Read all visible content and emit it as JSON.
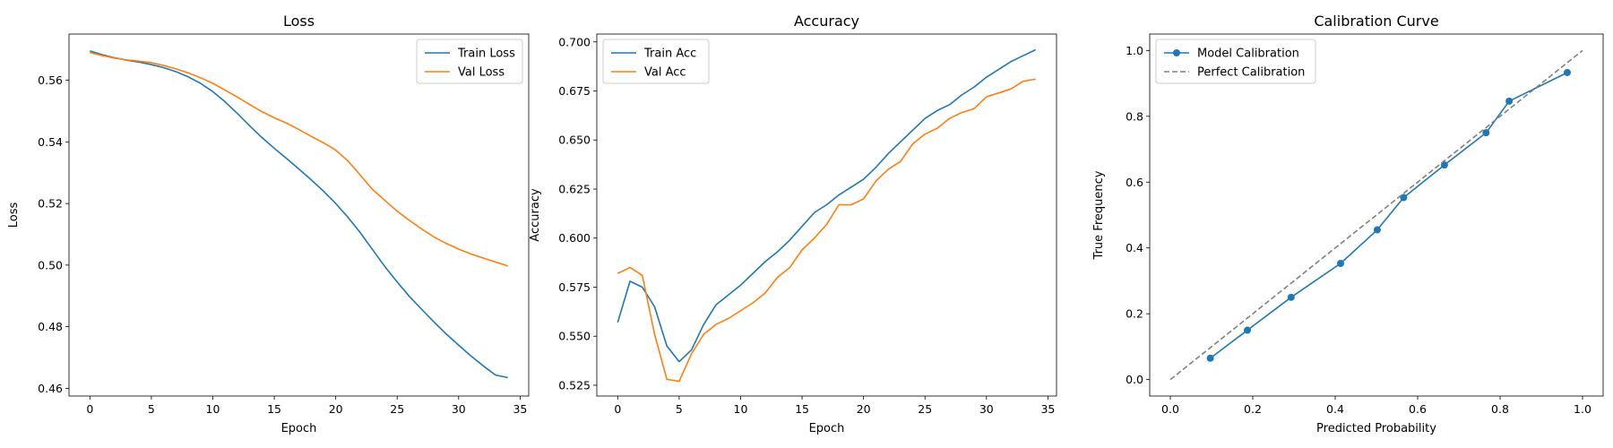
{
  "chart_data": [
    {
      "type": "line",
      "title": "Loss",
      "xlabel": "Epoch",
      "ylabel": "Loss",
      "xlim": [
        -1.7,
        35.7
      ],
      "ylim": [
        0.4575,
        0.575
      ],
      "xticks": [
        0,
        5,
        10,
        15,
        20,
        25,
        30,
        35
      ],
      "yticks": [
        0.46,
        0.48,
        0.5,
        0.52,
        0.54,
        0.56
      ],
      "legend": "top-right",
      "grid": false,
      "x": [
        0,
        1,
        2,
        3,
        4,
        5,
        6,
        7,
        8,
        9,
        10,
        11,
        12,
        13,
        14,
        15,
        16,
        17,
        18,
        19,
        20,
        21,
        22,
        23,
        24,
        25,
        26,
        27,
        28,
        29,
        30,
        31,
        32,
        33,
        34
      ],
      "series": [
        {
          "name": "Train Loss",
          "color": "#1f77b4",
          "marker": "none",
          "dash": "solid",
          "values": [
            0.5695,
            0.5683,
            0.5673,
            0.5665,
            0.5659,
            0.5651,
            0.5641,
            0.5628,
            0.5611,
            0.559,
            0.5563,
            0.553,
            0.5492,
            0.5452,
            0.5414,
            0.5379,
            0.5346,
            0.5312,
            0.5277,
            0.524,
            0.52,
            0.5155,
            0.5105,
            0.505,
            0.4995,
            0.4945,
            0.4898,
            0.4856,
            0.4815,
            0.4776,
            0.474,
            0.4705,
            0.4673,
            0.4643,
            0.4635
          ]
        },
        {
          "name": "Val Loss",
          "color": "#ff7f0e",
          "marker": "none",
          "dash": "solid",
          "values": [
            0.569,
            0.568,
            0.5672,
            0.5666,
            0.5662,
            0.5657,
            0.5648,
            0.5637,
            0.5624,
            0.5608,
            0.559,
            0.5568,
            0.5545,
            0.5521,
            0.5498,
            0.5478,
            0.5461,
            0.544,
            0.5418,
            0.5397,
            0.5373,
            0.5338,
            0.5292,
            0.5245,
            0.521,
            0.5175,
            0.5145,
            0.5117,
            0.5091,
            0.507,
            0.5052,
            0.5036,
            0.5023,
            0.501,
            0.4997
          ]
        }
      ]
    },
    {
      "type": "line",
      "title": "Accuracy",
      "xlabel": "Epoch",
      "ylabel": "Accuracy",
      "xlim": [
        -1.7,
        35.7
      ],
      "ylim": [
        0.5195,
        0.704
      ],
      "xticks": [
        0,
        5,
        10,
        15,
        20,
        25,
        30,
        35
      ],
      "yticks": [
        0.525,
        0.55,
        0.575,
        0.6,
        0.625,
        0.65,
        0.675,
        0.7
      ],
      "legend": "top-left",
      "grid": false,
      "x": [
        0,
        1,
        2,
        3,
        4,
        5,
        6,
        7,
        8,
        9,
        10,
        11,
        12,
        13,
        14,
        15,
        16,
        17,
        18,
        19,
        20,
        21,
        22,
        23,
        24,
        25,
        26,
        27,
        28,
        29,
        30,
        31,
        32,
        33,
        34
      ],
      "series": [
        {
          "name": "Train Acc",
          "color": "#1f77b4",
          "marker": "none",
          "dash": "solid",
          "values": [
            0.557,
            0.578,
            0.575,
            0.565,
            0.545,
            0.537,
            0.543,
            0.556,
            0.566,
            0.571,
            0.576,
            0.582,
            0.588,
            0.593,
            0.599,
            0.606,
            0.613,
            0.617,
            0.622,
            0.626,
            0.63,
            0.636,
            0.643,
            0.649,
            0.655,
            0.661,
            0.665,
            0.668,
            0.673,
            0.677,
            0.682,
            0.686,
            0.69,
            0.693,
            0.696
          ]
        },
        {
          "name": "Val Acc",
          "color": "#ff7f0e",
          "marker": "none",
          "dash": "solid",
          "values": [
            0.582,
            0.585,
            0.581,
            0.551,
            0.528,
            0.527,
            0.541,
            0.551,
            0.556,
            0.559,
            0.563,
            0.567,
            0.572,
            0.58,
            0.585,
            0.594,
            0.6,
            0.607,
            0.617,
            0.617,
            0.62,
            0.629,
            0.635,
            0.639,
            0.648,
            0.653,
            0.656,
            0.661,
            0.664,
            0.666,
            0.672,
            0.674,
            0.676,
            0.68,
            0.681
          ]
        }
      ]
    },
    {
      "type": "line",
      "title": "Calibration Curve",
      "xlabel": "Predicted Probability",
      "ylabel": "True Frequency",
      "xlim": [
        -0.05,
        1.05
      ],
      "ylim": [
        -0.05,
        1.05
      ],
      "xticks": [
        0.0,
        0.2,
        0.4,
        0.6,
        0.8,
        1.0
      ],
      "yticks": [
        0.0,
        0.2,
        0.4,
        0.6,
        0.8,
        1.0
      ],
      "legend": "top-left",
      "grid": false,
      "series": [
        {
          "name": "Model Calibration",
          "color": "#1f77b4",
          "marker": "circle",
          "dash": "solid",
          "x": [
            0.097,
            0.187,
            0.293,
            0.413,
            0.502,
            0.566,
            0.665,
            0.766,
            0.822,
            0.963
          ],
          "values": [
            0.065,
            0.15,
            0.25,
            0.353,
            0.455,
            0.553,
            0.652,
            0.75,
            0.846,
            0.933
          ]
        },
        {
          "name": "Perfect Calibration",
          "color": "#808080",
          "marker": "none",
          "dash": "dashed",
          "x": [
            0.0,
            1.0
          ],
          "values": [
            0.0,
            1.0
          ]
        }
      ]
    }
  ]
}
